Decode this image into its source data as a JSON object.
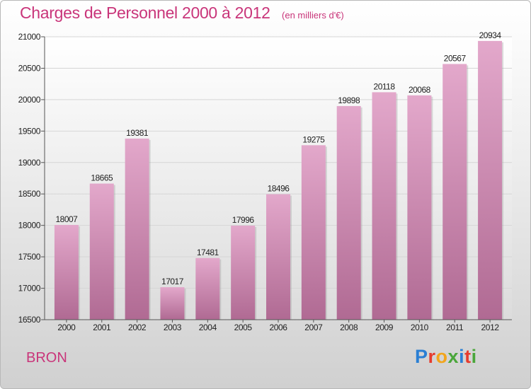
{
  "title": "Charges de Personnel 2000 à 2012",
  "subtitle": "(en milliers d'€)",
  "city": "BRON",
  "logo": {
    "text": "Proxiti",
    "colors": [
      "#2a7fd4",
      "#e63c2e",
      "#f2a51c",
      "#4aa63a",
      "#2a7fd4",
      "#e63c2e",
      "#4aa63a"
    ]
  },
  "colors": {
    "accent": "#c9357a",
    "bar_top": "#e3a8cb",
    "bar_bottom": "#b06a93"
  },
  "chart_data": {
    "type": "bar",
    "categories": [
      "2000",
      "2001",
      "2002",
      "2003",
      "2004",
      "2005",
      "2006",
      "2007",
      "2008",
      "2009",
      "2010",
      "2011",
      "2012"
    ],
    "values": [
      18007,
      18665,
      19381,
      17017,
      17481,
      17996,
      18496,
      19275,
      19898,
      20118,
      20068,
      20567,
      20934
    ],
    "title": "Charges de Personnel 2000 à 2012",
    "ylim": [
      16500,
      21000
    ],
    "yticks": [
      16500,
      17000,
      17500,
      18000,
      18500,
      19000,
      19500,
      20000,
      20500,
      21000
    ],
    "grid": true,
    "legend": "none"
  }
}
